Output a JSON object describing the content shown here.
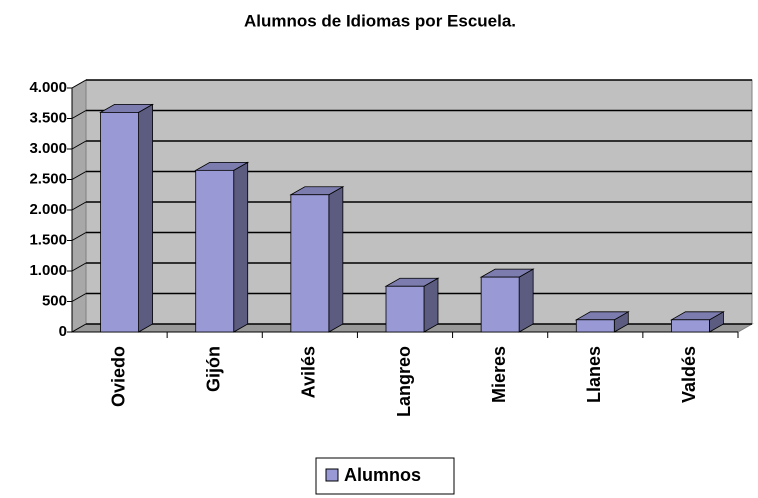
{
  "chart_data": {
    "type": "bar3d",
    "title": "Alumnos de Idiomas por Escuela.",
    "categories": [
      "Oviedo",
      "Gijón",
      "Avilés",
      "Langreo",
      "Mieres",
      "Llanes",
      "Valdés"
    ],
    "series": [
      {
        "name": "Alumnos",
        "color": "#9999d6",
        "values": [
          3600,
          2650,
          2250,
          750,
          900,
          200,
          200
        ]
      }
    ],
    "ylim": [
      0,
      4000
    ],
    "yticks": [
      0,
      500,
      {
        "value": 1000,
        "label": "1.000"
      },
      {
        "value": 1500,
        "label": "1.500"
      },
      {
        "value": 2000,
        "label": "2.000"
      },
      {
        "value": 2500,
        "label": "2.500"
      },
      {
        "value": 3000,
        "label": "3.000"
      },
      {
        "value": 3500,
        "label": "3.500"
      },
      {
        "value": 4000,
        "label": "4.000"
      }
    ],
    "grid": true,
    "legend": "bottom"
  }
}
